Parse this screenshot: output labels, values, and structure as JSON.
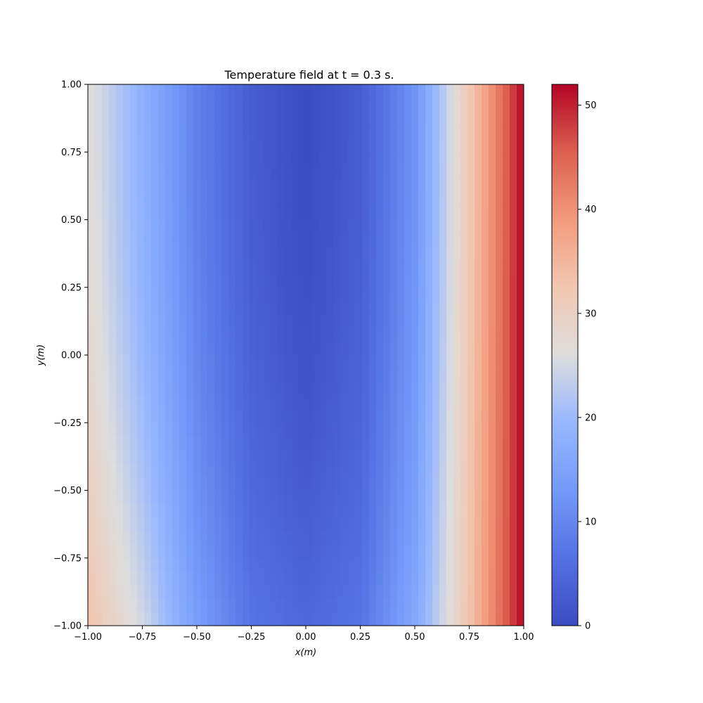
{
  "chart_data": {
    "type": "heatmap",
    "title": "Temperature field at t = 0.3 s.",
    "xlabel": "x(m)",
    "ylabel": "y(m)",
    "xlim": [
      -1.0,
      1.0
    ],
    "ylim": [
      -1.0,
      1.0
    ],
    "x_ticks": [
      -1.0,
      -0.75,
      -0.5,
      -0.25,
      0.0,
      0.25,
      0.5,
      0.75,
      1.0
    ],
    "x_tick_labels": [
      "−1.00",
      "−0.75",
      "−0.50",
      "−0.25",
      "0.00",
      "0.25",
      "0.50",
      "0.75",
      "1.00"
    ],
    "y_ticks": [
      1.0,
      0.75,
      0.5,
      0.25,
      0.0,
      -0.25,
      -0.5,
      -0.75,
      -1.0
    ],
    "y_tick_labels": [
      "1.00",
      "0.75",
      "0.50",
      "0.25",
      "0.00",
      "−0.25",
      "−0.50",
      "−0.75",
      "−1.00"
    ],
    "colormap": "coolwarm",
    "color_range": [
      0,
      52
    ],
    "colorbar_ticks": [
      0,
      10,
      20,
      30,
      40,
      50
    ],
    "colorbar_tick_labels": [
      "0",
      "10",
      "20",
      "30",
      "40",
      "50"
    ],
    "profile_x": [
      -1.0,
      -0.75,
      -0.5,
      -0.25,
      0.0,
      0.25,
      0.5,
      0.75,
      1.0
    ],
    "profile_top_y1": [
      27,
      18,
      9,
      3,
      0,
      3,
      12,
      32,
      52
    ],
    "profile_bottom_yneg1": [
      33,
      25,
      14,
      7,
      5,
      7,
      16,
      33,
      52
    ],
    "grid": false,
    "colorbar_placement": "right"
  }
}
